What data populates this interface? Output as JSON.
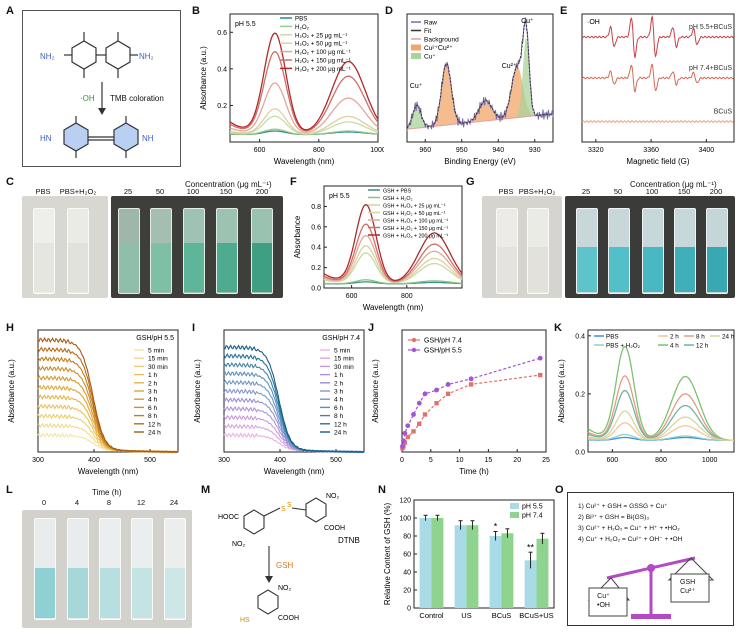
{
  "panel_letters": [
    "A",
    "B",
    "C",
    "D",
    "E",
    "F",
    "G",
    "H",
    "I",
    "J",
    "K",
    "L",
    "M",
    "N",
    "O"
  ],
  "panelA": {
    "oh": "·OH",
    "caption": "TMB coloration",
    "nh2": "NH₂",
    "hn": "HN"
  },
  "panelC": {
    "title": "Concentration (μg mL⁻¹)",
    "labels": [
      "PBS",
      "PBS+H₂O₂",
      "25",
      "50",
      "100",
      "150",
      "200"
    ]
  },
  "panelG": {
    "title": "Concentration (μg mL⁻¹)",
    "labels": [
      "PBS",
      "PBS+H₂O₂",
      "25",
      "50",
      "100",
      "150",
      "200"
    ]
  },
  "panelL": {
    "title": "Time (h)",
    "labels": [
      "0",
      "4",
      "8",
      "12",
      "24"
    ]
  },
  "panelM": {
    "reagent": "DTNB",
    "arrow_label": "GSH",
    "hooc": "HOOC",
    "no2": "NO₂",
    "cooh": "COOH",
    "hs": "HS"
  },
  "panelO": {
    "equations": [
      "1) Cu²⁺ + GSH = GSSG + Cu⁺",
      "2) Bi³⁺ + GSH = Bi(GS)₃",
      "3) Cu²⁺ + H₂O₂ = Cu⁺ + H⁺ + •HO₂",
      "4) Cu⁺ + H₂O₂ = Cu²⁺ + OH⁻ + •OH"
    ],
    "left_pan": [
      "Cu⁺",
      "•OH"
    ],
    "right_pan": [
      "GSH",
      "Cu²⁺"
    ]
  },
  "chart_data": [
    {
      "panel": "B",
      "type": "line",
      "annotation": "pH 5.5",
      "xlabel": "Wavelength (nm)",
      "ylabel": "Absorbance (a.u.)",
      "xlim": [
        500,
        1000
      ],
      "xticks": [
        600,
        800,
        1000
      ],
      "ylim": [
        0,
        0.7
      ],
      "yticks": [
        0.2,
        0.4,
        0.6
      ],
      "series": [
        {
          "name": "PBS",
          "color": "#2a8a83",
          "peak650": 0.02,
          "peak900": 0.015
        },
        {
          "name": "H₂O₂",
          "color": "#9acb8c",
          "peak650": 0.03,
          "peak900": 0.02
        },
        {
          "name": "H₂O₂ + 25 μg mL⁻¹",
          "color": "#c9dca8",
          "peak650": 0.1,
          "peak900": 0.07
        },
        {
          "name": "H₂O₂ + 50 μg mL⁻¹",
          "color": "#e0cfa0",
          "peak650": 0.14,
          "peak900": 0.1
        },
        {
          "name": "H₂O₂ + 100 μg mL⁻¹",
          "color": "#e0a89a",
          "peak650": 0.28,
          "peak900": 0.2
        },
        {
          "name": "H₂O₂ + 150 μg mL⁻¹",
          "color": "#cf6e66",
          "peak650": 0.45,
          "peak900": 0.32
        },
        {
          "name": "H₂O₂ + 200 μg mL⁻¹",
          "color": "#b02a2a",
          "peak650": 0.55,
          "peak900": 0.4
        }
      ]
    },
    {
      "panel": "D",
      "type": "line",
      "xlabel": "Binding Energy (eV)",
      "ylabel": "Intensity (a.u.)",
      "xlim": [
        965,
        925
      ],
      "xticks": [
        960,
        950,
        940,
        930
      ],
      "series": [
        {
          "name": "Raw",
          "color": "#7b6aa8"
        },
        {
          "name": "Fit",
          "color": "#333333"
        },
        {
          "name": "Background",
          "color": "#e0a1a1"
        },
        {
          "name": "Cu²⁺",
          "color": "#f2a66b"
        },
        {
          "name": "Cu⁺",
          "color": "#a9d39a"
        }
      ],
      "annotations": [
        "Cu⁺",
        "Cu²⁺",
        "Cu²⁺",
        "Cu⁺"
      ]
    },
    {
      "panel": "E",
      "type": "line",
      "xlabel": "Magnetic field (G)",
      "ylabel": "Intensity (a.u.)",
      "annotation": "·OH",
      "xlim": [
        3310,
        3420
      ],
      "xticks": [
        3320,
        3360,
        3400
      ],
      "series": [
        {
          "name": "pH 5.5+BCuS",
          "color": "#c8404a"
        },
        {
          "name": "pH 7.4+BCuS",
          "color": "#d56a58"
        },
        {
          "name": "BCuS",
          "color": "#e9a178"
        }
      ]
    },
    {
      "panel": "F",
      "type": "line",
      "annotation": "pH 5.5",
      "xlabel": "Wavelength (nm)",
      "ylabel": "Absorbance",
      "xlim": [
        500,
        1000
      ],
      "xticks": [
        600,
        800
      ],
      "ylim": [
        0,
        1.0
      ],
      "yticks": [
        0.0,
        0.2,
        0.4,
        0.6,
        0.8
      ],
      "series": [
        {
          "name": "GSH + PBS",
          "color": "#3f8f86",
          "peak650": 0.02,
          "peak900": 0.015
        },
        {
          "name": "GSH + H₂O₂",
          "color": "#8ac482",
          "peak650": 0.04,
          "peak900": 0.03
        },
        {
          "name": "GSH + H₂O₂ + 25 μg mL⁻¹",
          "color": "#c7d9a5",
          "peak650": 0.3,
          "peak900": 0.2
        },
        {
          "name": "GSH + H₂O₂ + 50 μg mL⁻¹",
          "color": "#ddd0a2",
          "peak650": 0.37,
          "peak900": 0.25
        },
        {
          "name": "GSH + H₂O₂ + 100 μg mL⁻¹",
          "color": "#e0a89a",
          "peak650": 0.47,
          "peak900": 0.32
        },
        {
          "name": "GSH + H₂O₂ + 150 μg mL⁻¹",
          "color": "#cf6e66",
          "peak650": 0.58,
          "peak900": 0.39
        },
        {
          "name": "GSH + H₂O₂ + 200 μg mL⁻¹",
          "color": "#b02a2a",
          "peak650": 0.77,
          "peak900": 0.5
        }
      ]
    },
    {
      "panel": "H",
      "type": "line",
      "annotation": "GSH/pH 5.5",
      "xlabel": "Wavelength (nm)",
      "ylabel": "Absorbance (a.u.)",
      "xlim": [
        300,
        550
      ],
      "xticks": [
        300,
        400,
        500
      ],
      "series": [
        {
          "name": "5   min",
          "color": "#f3e6a6"
        },
        {
          "name": "15 min",
          "color": "#efdb8a"
        },
        {
          "name": "30 min",
          "color": "#ebcf70"
        },
        {
          "name": "1   h",
          "color": "#e6c35a"
        },
        {
          "name": "2   h",
          "color": "#e1b64a"
        },
        {
          "name": "3   h",
          "color": "#dca83c"
        },
        {
          "name": "4   h",
          "color": "#d69a30"
        },
        {
          "name": "6   h",
          "color": "#cf8b26"
        },
        {
          "name": "8   h",
          "color": "#c67b1e"
        },
        {
          "name": "12 h",
          "color": "#bb6b18"
        },
        {
          "name": "24 h",
          "color": "#a85912"
        }
      ]
    },
    {
      "panel": "I",
      "type": "line",
      "annotation": "GSH/pH 7.4",
      "xlabel": "Wavelength (nm)",
      "ylabel": "Absorbance (a.u.)",
      "xlim": [
        300,
        550
      ],
      "xticks": [
        300,
        400,
        500
      ],
      "series": [
        {
          "name": "5   min",
          "color": "#e9b4e0"
        },
        {
          "name": "15 min",
          "color": "#dba5e3"
        },
        {
          "name": "30 min",
          "color": "#c99ae2"
        },
        {
          "name": "1   h",
          "color": "#b191dd"
        },
        {
          "name": "2   h",
          "color": "#9a8fd6"
        },
        {
          "name": "3   h",
          "color": "#8694d1"
        },
        {
          "name": "4   h",
          "color": "#6f96c6"
        },
        {
          "name": "6   h",
          "color": "#5a93b8"
        },
        {
          "name": "8   h",
          "color": "#3e86a8"
        },
        {
          "name": "12 h",
          "color": "#24739a"
        },
        {
          "name": "24 h",
          "color": "#165f86"
        }
      ]
    },
    {
      "panel": "J",
      "type": "line",
      "xlabel": "Time (h)",
      "ylabel": "Absorbance (a.u.)",
      "xlim": [
        0,
        25
      ],
      "xticks": [
        0,
        5,
        10,
        15,
        20,
        25
      ],
      "ylim": [
        0,
        0.65
      ],
      "series": [
        {
          "name": "GSH/pH 7.4",
          "color": "#e3716b",
          "x": [
            0.083,
            0.25,
            0.5,
            1,
            2,
            3,
            4,
            6,
            8,
            12,
            24
          ],
          "y": [
            0.02,
            0.03,
            0.05,
            0.08,
            0.11,
            0.15,
            0.2,
            0.26,
            0.31,
            0.36,
            0.41
          ]
        },
        {
          "name": "GSH/pH 5.5",
          "color": "#a552d6",
          "x": [
            0.083,
            0.25,
            0.5,
            1,
            2,
            3,
            4,
            6,
            8,
            12,
            24
          ],
          "y": [
            0.03,
            0.06,
            0.1,
            0.14,
            0.2,
            0.26,
            0.31,
            0.33,
            0.36,
            0.39,
            0.5
          ]
        }
      ]
    },
    {
      "panel": "K",
      "type": "line",
      "ylabel": "Absorbance (a.u.)",
      "xlim": [
        500,
        1100
      ],
      "xticks": [
        600,
        800,
        1000
      ],
      "ylim": [
        0,
        0.42
      ],
      "yticks": [
        0.0,
        0.2,
        0.4
      ],
      "series": [
        {
          "name": "PBS",
          "color": "#3f8fd6",
          "peak650": 0.01,
          "peak900": 0.01
        },
        {
          "name": "PBS + H₂O₂",
          "color": "#8fd0d0",
          "peak650": 0.02,
          "peak900": 0.015
        },
        {
          "name": "2 h",
          "color": "#f0c99a",
          "peak650": 0.06,
          "peak900": 0.05
        },
        {
          "name": "4 h",
          "color": "#7cc271",
          "peak650": 0.32,
          "peak900": 0.22
        },
        {
          "name": "8 h",
          "color": "#e49a86",
          "peak650": 0.22,
          "peak900": 0.16
        },
        {
          "name": "12 h",
          "color": "#6fb5a0",
          "peak650": 0.17,
          "peak900": 0.12
        },
        {
          "name": "24 h",
          "color": "#d9d69a",
          "peak650": 0.1,
          "peak900": 0.08
        }
      ]
    },
    {
      "panel": "N",
      "type": "bar",
      "xlabel": "",
      "ylabel": "Relative Content of GSH (%)",
      "categories": [
        "Control",
        "US",
        "BCuS",
        "BCuS+US"
      ],
      "ylim": [
        0,
        120
      ],
      "yticks": [
        0,
        20,
        40,
        60,
        80,
        100,
        120
      ],
      "series": [
        {
          "name": "pH 5.5",
          "color": "#a8dbe6",
          "values": [
            100,
            92,
            80,
            53
          ],
          "errors": [
            3,
            5,
            5,
            9
          ]
        },
        {
          "name": "pH 7.4",
          "color": "#8fd48e",
          "values": [
            100,
            92,
            83,
            77
          ],
          "errors": [
            3,
            5,
            5,
            6
          ]
        }
      ],
      "annotations": [
        "*",
        "**"
      ]
    }
  ]
}
